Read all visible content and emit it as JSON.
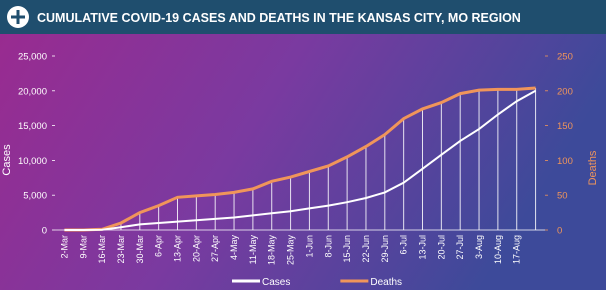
{
  "chart_data": {
    "type": "line",
    "title": "CUMULATIVE COVID-19 CASES AND DEATHS IN THE KANSAS CITY, MO REGION",
    "y_label": "Cases",
    "y2_label": "Deaths",
    "categories": [
      "2-Mar",
      "9-Mar",
      "16-Mar",
      "23-Mar",
      "30-Mar",
      "6-Apr",
      "13-Apr",
      "20-Apr",
      "27-Apr",
      "4-May",
      "11-May",
      "18-May",
      "25-May",
      "1-Jun",
      "8-Jun",
      "15-Jun",
      "22-Jun",
      "29-Jun",
      "6-Jul",
      "13-Jul",
      "20-Jul",
      "27-Jul",
      "3-Aug",
      "10-Aug",
      "17-Aug",
      null
    ],
    "series": [
      {
        "name": "Cases",
        "color": "#ffffff",
        "axis": "y",
        "values": [
          0,
          0,
          50,
          400,
          800,
          1000,
          1200,
          1400,
          1600,
          1800,
          2100,
          2400,
          2700,
          3100,
          3500,
          4000,
          4600,
          5400,
          6800,
          8800,
          10800,
          12800,
          14500,
          16600,
          18500,
          20000
        ]
      },
      {
        "name": "Deaths",
        "color": "#f0955a",
        "axis": "y2",
        "values": [
          0,
          0,
          1,
          10,
          25,
          35,
          47,
          49,
          51,
          54,
          59,
          70,
          76,
          84,
          92,
          105,
          120,
          137,
          160,
          174,
          183,
          196,
          201,
          202,
          202,
          204
        ]
      }
    ],
    "ylim": [
      0,
      25000
    ],
    "yticks": [
      0,
      {
        "value": 5000,
        "label": "5,000"
      },
      {
        "value": 10000,
        "label": "10,000"
      },
      {
        "value": 15000,
        "label": "15,000"
      },
      {
        "value": 20000,
        "label": "20,000"
      },
      {
        "value": 25000,
        "label": "25,000"
      }
    ],
    "y2lim": [
      0,
      250
    ],
    "y2ticks": [
      0,
      50,
      100,
      150,
      200,
      250
    ],
    "legend": "bottom"
  }
}
